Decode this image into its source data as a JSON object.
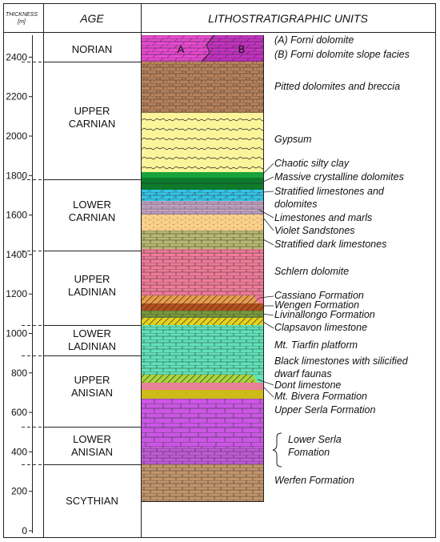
{
  "header": {
    "thickness_label": "THICKNESS",
    "thickness_unit": "[m]",
    "age_label": "AGE",
    "units_label": "LITHOSTRATIGRAPHIC UNITS"
  },
  "thickness_ticks": [
    "0",
    "200",
    "400",
    "600",
    "800",
    "1000",
    "1200",
    "1400",
    "1600",
    "1800",
    "2000",
    "2200",
    "2400"
  ],
  "ages": [
    {
      "lines": [
        "NORIAN"
      ]
    },
    {
      "lines": [
        "UPPER",
        "CARNIAN"
      ]
    },
    {
      "lines": [
        "LOWER",
        "CARNIAN"
      ]
    },
    {
      "lines": [
        "UPPER",
        "LADINIAN"
      ]
    },
    {
      "lines": [
        "LOWER",
        "LADINIAN"
      ]
    },
    {
      "lines": [
        "UPPER",
        "ANISIAN"
      ]
    },
    {
      "lines": [
        "LOWER",
        "ANISIAN"
      ]
    },
    {
      "lines": [
        "SCYTHIAN"
      ]
    }
  ],
  "column_letters": {
    "a": "A",
    "b": "B"
  },
  "units": [
    "(A) Forni dolomite",
    "(B) Forni dolomite slope facies",
    "Pitted dolomites and breccia",
    "Gypsum",
    "Chaotic silty clay",
    "Massive crystalline dolomites",
    "Stratified limestones and",
    "dolomites",
    "Limestones and marls",
    "Violet Sandstones",
    "Stratified dark limestones",
    "Schlern dolomite",
    "Cassiano Formation",
    "Wengen Formation",
    "Livinallongo Formation",
    "Clapsavon limestone",
    "Mt. Tiarfin platform",
    "Black limestones with silicified",
    "dwarf faunas",
    "Dont limestone",
    "Mt. Bivera Formation",
    "Upper Serla Formation",
    "Lower Serla",
    "Fomation",
    "Werfen Formation"
  ],
  "colors": {
    "norian_a": "#e64ad0",
    "norian_b": "#c233c0",
    "pitted": "#b7815a",
    "gypsum": "#fbf59a",
    "chaotic": "#1aa33a",
    "massive": "#0d7a2c",
    "stratified_lime": "#33c6e8",
    "limestone_marl": "#c3a3c3",
    "violet_sand": "#f8d08a",
    "dark_lime": "#b7b870",
    "schlern": "#ef7a98",
    "cassiano": "#e89b4a",
    "wengen": "#b4501a",
    "livinallongo": "#76993c",
    "clapsavon": "#e6d21c",
    "tiarfin": "#5fe2b8",
    "black_lime": "#a8d43a",
    "dont": "#e88098",
    "bivera": "#cdbb1a",
    "upper_serla": "#cc55e6",
    "lower_serla": "#c05ad8",
    "werfen": "#c2946a"
  }
}
